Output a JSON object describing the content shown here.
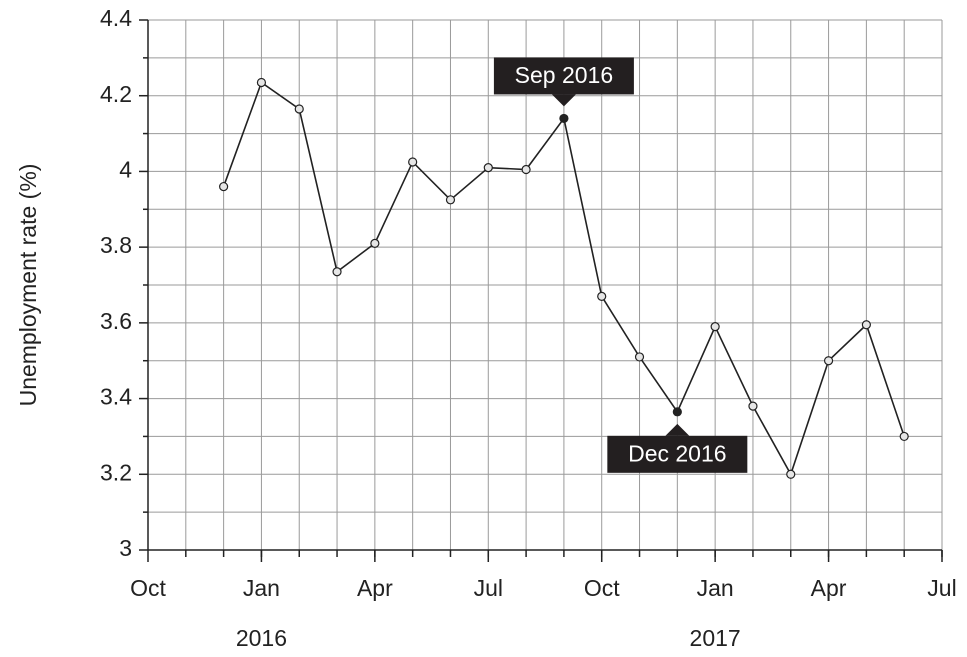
{
  "chart_data": {
    "type": "line",
    "y_label": "Unemployment rate (%)",
    "x": [
      "2015-12",
      "2016-01",
      "2016-02",
      "2016-03",
      "2016-04",
      "2016-05",
      "2016-06",
      "2016-07",
      "2016-08",
      "2016-09",
      "2016-10",
      "2016-11",
      "2016-12",
      "2017-01",
      "2017-02",
      "2017-03",
      "2017-04",
      "2017-05",
      "2017-06"
    ],
    "series": [
      {
        "name": "Unemployment rate",
        "color": "#222222",
        "values": [
          3.96,
          4.235,
          4.165,
          3.735,
          3.81,
          4.025,
          3.925,
          4.01,
          4.005,
          4.14,
          3.67,
          3.51,
          3.365,
          3.59,
          3.38,
          3.2,
          3.5,
          3.595,
          3.3
        ]
      }
    ],
    "xlim": [
      "2015-10",
      "2017-07"
    ],
    "xticks": [
      {
        "value": "2015-10",
        "label": "Oct"
      },
      {
        "value": "2016-01",
        "label": "Jan"
      },
      {
        "value": "2016-04",
        "label": "Apr"
      },
      {
        "value": "2016-07",
        "label": "Jul"
      },
      {
        "value": "2016-10",
        "label": "Oct"
      },
      {
        "value": "2017-01",
        "label": "Jan"
      },
      {
        "value": "2017-04",
        "label": "Apr"
      },
      {
        "value": "2017-07",
        "label": "Jul"
      }
    ],
    "year_labels": [
      {
        "value": "2016-01",
        "label": "2016"
      },
      {
        "value": "2017-01",
        "label": "2017"
      }
    ],
    "ylim": [
      3,
      4.4
    ],
    "yticks": [
      3,
      3.2,
      3.4,
      3.6,
      3.8,
      4,
      4.2,
      4.4
    ],
    "grid": true,
    "annotations": [
      {
        "x": "2016-09",
        "label": "Sep 2016",
        "position": "above"
      },
      {
        "x": "2016-12",
        "label": "Dec 2016",
        "position": "below"
      }
    ]
  }
}
